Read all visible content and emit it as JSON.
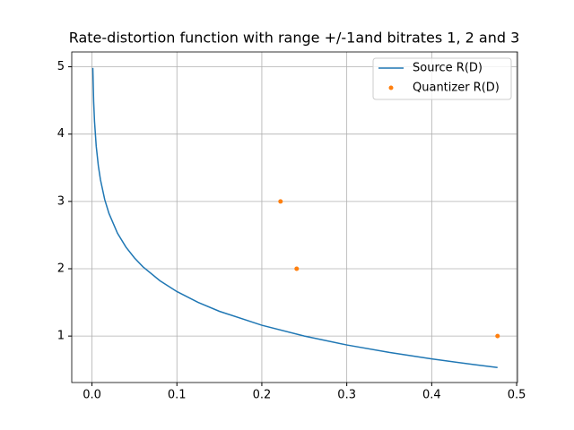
{
  "chart_data": {
    "type": "line",
    "title": "Rate-distortion function with range +/-1and bitrates 1, 2 and 3",
    "series": [
      {
        "name": "Source R(D)",
        "color": "#1f77b4",
        "type": "line",
        "x": [
          0.001,
          0.002,
          0.003,
          0.005,
          0.0075,
          0.01,
          0.015,
          0.02,
          0.03,
          0.04,
          0.05,
          0.06,
          0.08,
          0.1,
          0.125,
          0.15,
          0.2,
          0.25,
          0.3,
          0.35,
          0.4,
          0.45,
          0.4775
        ],
        "values": [
          4.983,
          4.483,
          4.19,
          3.822,
          3.529,
          3.322,
          3.029,
          2.822,
          2.529,
          2.322,
          2.161,
          2.029,
          1.822,
          1.661,
          1.5,
          1.368,
          1.161,
          1.0,
          0.868,
          0.757,
          0.661,
          0.576,
          0.533
        ]
      },
      {
        "name": "Quantizer R(D)",
        "color": "#ff7f0e",
        "type": "scatter",
        "x": [
          0.222,
          0.241,
          0.4775
        ],
        "values": [
          3,
          2,
          1
        ]
      }
    ],
    "xlim": [
      -0.0238,
      0.501
    ],
    "ylim": [
      0.31,
      5.22
    ],
    "xticks": [
      {
        "value": 0,
        "label": "0.0"
      },
      0.1,
      0.2,
      0.3,
      0.4,
      0.5
    ],
    "yticks": [
      1,
      2,
      3,
      4,
      5
    ],
    "grid": true,
    "legend": "upper right"
  }
}
